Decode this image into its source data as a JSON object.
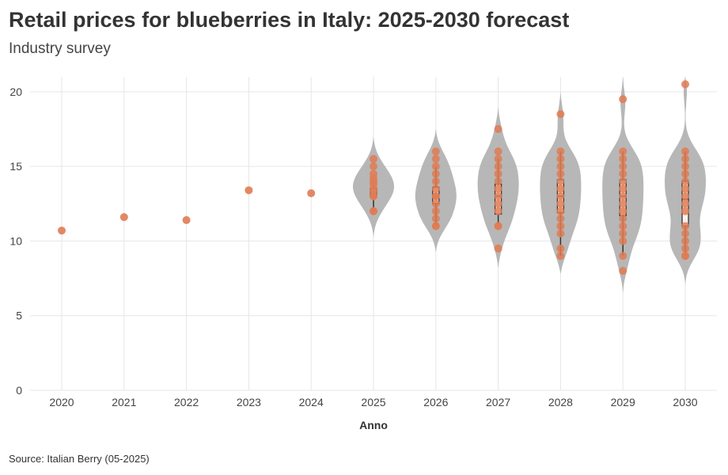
{
  "header": {
    "title": "Retail prices for blueberries in Italy: 2025-2030 forecast",
    "subtitle": "Industry survey"
  },
  "footer": {
    "source": "Source: Italian Berry (05-2025)"
  },
  "colors": {
    "point": "#e07b53",
    "violin": "#b3b3b3",
    "box_fill": "#fdf1ec",
    "box_stroke": "#333333",
    "grid": "#e6e6e6",
    "text": "#444444"
  },
  "chart_data": {
    "type": "violin",
    "xlabel": "Anno",
    "ylabel": "",
    "x_ticks": [
      "2020",
      "2021",
      "2022",
      "2023",
      "2024",
      "2025",
      "2026",
      "2027",
      "2028",
      "2029",
      "2030"
    ],
    "y_ticks": [
      0,
      5,
      10,
      15,
      20
    ],
    "ylim": [
      0,
      21
    ],
    "grid": true,
    "historical": [
      {
        "year": "2020",
        "value": 10.7
      },
      {
        "year": "2021",
        "value": 11.6
      },
      {
        "year": "2022",
        "value": 11.4
      },
      {
        "year": "2023",
        "value": 13.4
      },
      {
        "year": "2024",
        "value": 13.2
      }
    ],
    "forecast": [
      {
        "year": "2025",
        "points": [
          12.0,
          12.0,
          13.0,
          13.0,
          13.3,
          13.5,
          13.8,
          14.0,
          14.2,
          14.5,
          15.0,
          15.5
        ],
        "q1": 13.0,
        "median": 13.2,
        "q3": 13.5,
        "whisker_low": 12.0,
        "whisker_high": 14.0,
        "violin_min": 10.2,
        "violin_max": 17.0
      },
      {
        "year": "2026",
        "points": [
          11.0,
          11.0,
          11.5,
          12.0,
          12.5,
          13.0,
          13.0,
          13.5,
          14.0,
          14.5,
          15.0,
          15.5,
          16.0
        ],
        "q1": 12.5,
        "median": 13.0,
        "q3": 13.6,
        "whisker_low": 11.0,
        "whisker_high": 15.0,
        "violin_min": 9.2,
        "violin_max": 17.5
      },
      {
        "year": "2027",
        "points": [
          9.5,
          11.0,
          11.0,
          12.0,
          12.5,
          13.0,
          13.5,
          14.0,
          14.5,
          15.0,
          15.5,
          16.0,
          17.5
        ],
        "q1": 11.8,
        "median": 13.0,
        "q3": 13.8,
        "whisker_low": 11.0,
        "whisker_high": 15.5,
        "violin_min": 8.2,
        "violin_max": 19.0
      },
      {
        "year": "2028",
        "points": [
          9.0,
          9.5,
          10.5,
          11.0,
          11.5,
          12.0,
          12.5,
          13.0,
          13.5,
          14.0,
          14.5,
          15.0,
          15.5,
          16.0,
          18.5
        ],
        "q1": 11.9,
        "median": 13.0,
        "q3": 14.1,
        "whisker_low": 9.0,
        "whisker_high": 16.0,
        "violin_min": 7.8,
        "violin_max": 20.0
      },
      {
        "year": "2029",
        "points": [
          8.0,
          9.0,
          10.0,
          10.5,
          11.0,
          11.5,
          12.0,
          12.5,
          13.0,
          13.5,
          14.0,
          14.5,
          15.0,
          15.5,
          16.0,
          19.5
        ],
        "q1": 11.7,
        "median": 13.0,
        "q3": 14.1,
        "whisker_low": 9.0,
        "whisker_high": 16.0,
        "violin_min": 6.5,
        "violin_max": 21.0
      },
      {
        "year": "2030",
        "points": [
          9.0,
          9.0,
          9.5,
          10.0,
          10.5,
          11.0,
          12.0,
          12.5,
          13.0,
          13.5,
          14.0,
          14.5,
          15.0,
          15.5,
          16.0,
          20.5
        ],
        "q1": 11.0,
        "median": 12.8,
        "q3": 14.0,
        "whisker_low": 9.0,
        "whisker_high": 16.0,
        "violin_min": 7.0,
        "violin_max": 21.0
      }
    ]
  }
}
